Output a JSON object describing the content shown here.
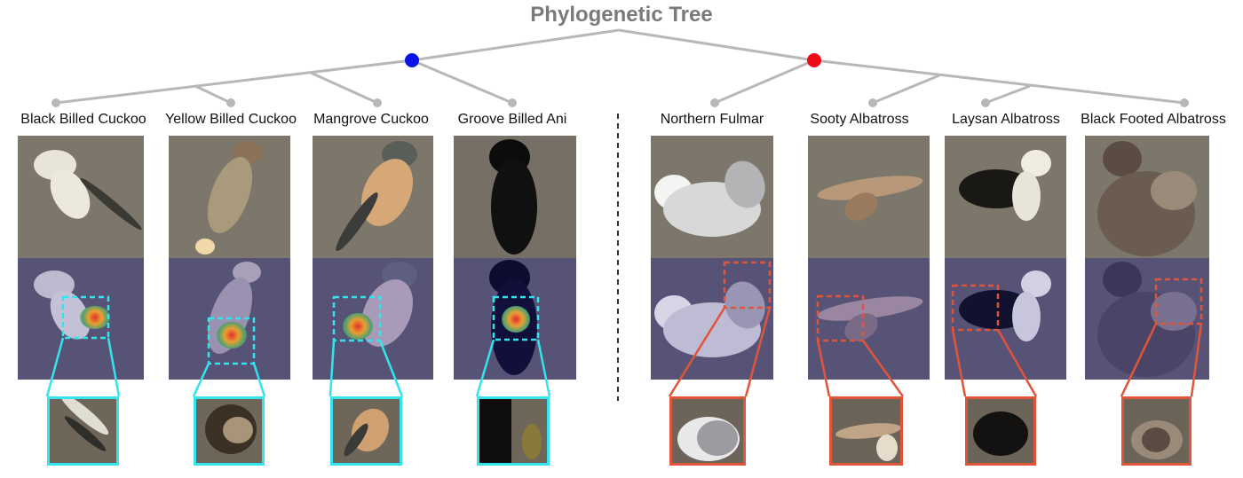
{
  "title": "Phylogenetic Tree",
  "colors": {
    "cuckoo_group_node": "#0a14e6",
    "albatross_group_node": "#ee0a16",
    "tree_line": "#b8b8b8",
    "cuckoo_highlight": "#35e3ec",
    "albatross_highlight": "#e0553a"
  },
  "species": [
    {
      "name": "Black Billed Cuckoo",
      "group": "cuckoo"
    },
    {
      "name": "Yellow Billed Cuckoo",
      "group": "cuckoo"
    },
    {
      "name": "Mangrove Cuckoo",
      "group": "cuckoo"
    },
    {
      "name": "Groove Billed Ani",
      "group": "cuckoo"
    },
    {
      "name": "Northern Fulmar",
      "group": "albatross"
    },
    {
      "name": "Sooty Albatross",
      "group": "albatross"
    },
    {
      "name": "Laysan Albatross",
      "group": "albatross"
    },
    {
      "name": "Black Footed Albatross",
      "group": "albatross"
    }
  ]
}
